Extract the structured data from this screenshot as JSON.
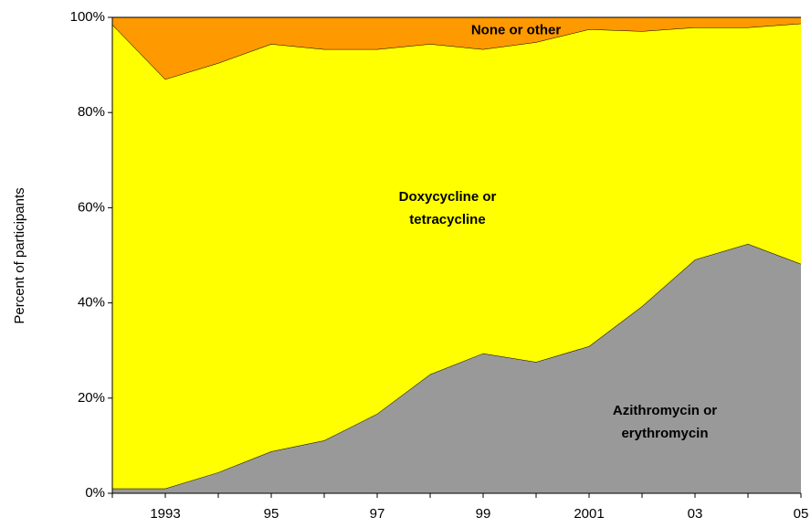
{
  "chart_data": {
    "type": "stacked_area",
    "y_label": "Percent of participants",
    "x": [
      1992,
      1993,
      1994,
      1995,
      1996,
      1997,
      1998,
      1999,
      2000,
      2001,
      2002,
      2003,
      2004,
      2005
    ],
    "xlim": [
      1992,
      2005
    ],
    "xticks": [
      {
        "value": 1993,
        "label": "1993"
      },
      {
        "value": 1995,
        "label": "95"
      },
      {
        "value": 1997,
        "label": "97"
      },
      {
        "value": 1999,
        "label": "99"
      },
      {
        "value": 2001,
        "label": "2001"
      },
      {
        "value": 2003,
        "label": "03"
      },
      {
        "value": 2005,
        "label": "05"
      }
    ],
    "ylim": [
      0,
      100
    ],
    "yticks": [
      {
        "value": 0,
        "label": "0%"
      },
      {
        "value": 20,
        "label": "20%"
      },
      {
        "value": 40,
        "label": "40%"
      },
      {
        "value": 60,
        "label": "60%"
      },
      {
        "value": 80,
        "label": "80%"
      },
      {
        "value": 100,
        "label": "100%"
      }
    ],
    "series": [
      {
        "name": "Azithromycin or erythromycin",
        "color": "#999999",
        "values": [
          1,
          1,
          4.4,
          8.8,
          11.1,
          16.7,
          25,
          29.4,
          27.6,
          30.9,
          39.3,
          49.1,
          52.4,
          48.2
        ]
      },
      {
        "name": "Doxycycline or tetracycline",
        "color": "#ffff00",
        "values": [
          97.5,
          86,
          86,
          85.6,
          82.2,
          76.6,
          69.4,
          63.9,
          67.2,
          66.6,
          57.8,
          48.8,
          45.5,
          50.5
        ]
      },
      {
        "name": "None or other",
        "color": "#ff9900",
        "values": [
          1.5,
          13,
          9.6,
          5.6,
          6.7,
          6.7,
          5.6,
          6.7,
          5.2,
          2.5,
          2.9,
          2.1,
          2.1,
          1.3
        ]
      }
    ]
  }
}
